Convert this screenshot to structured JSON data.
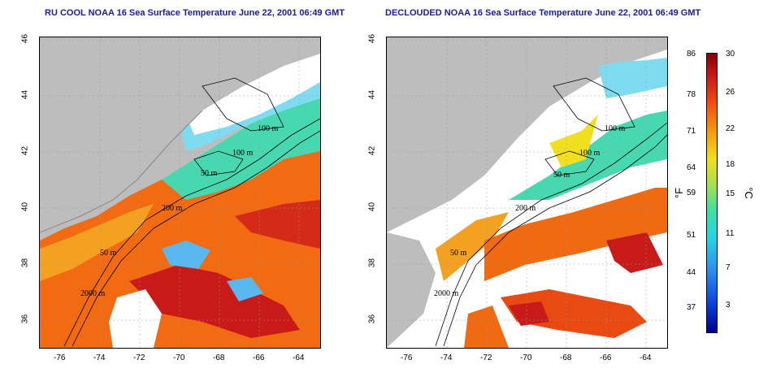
{
  "titles": {
    "left": "RU COOL NOAA 16 Sea Surface Temperature June 22, 2001 06:49 GMT",
    "right": "DECLOUDED NOAA 16 Sea Surface Temperature June 22, 2001 06:49 GMT"
  },
  "axes": {
    "x_ticks": [
      "-76",
      "-74",
      "-72",
      "-70",
      "-68",
      "-66",
      "-64"
    ],
    "y_ticks": [
      "46",
      "44",
      "42",
      "40",
      "38",
      "36"
    ]
  },
  "contours": {
    "labels": [
      "100 m",
      "100 m",
      "50 m",
      "200 m",
      "50 m",
      "2000 m"
    ]
  },
  "colorbar": {
    "fahrenheit_label": "°F",
    "celsius_label": "°C",
    "fahrenheit_ticks": [
      "86",
      "78",
      "71",
      "64",
      "59",
      "51",
      "44",
      "37"
    ],
    "celsius_ticks": [
      "30",
      "26",
      "22",
      "18",
      "15",
      "11",
      "7",
      "3"
    ]
  },
  "colors": {
    "title": "#1a1aa0",
    "land": "#bdbdbd",
    "warm": "#f05a10",
    "cool": "#40d8c0",
    "cloud": "#ffffff"
  }
}
